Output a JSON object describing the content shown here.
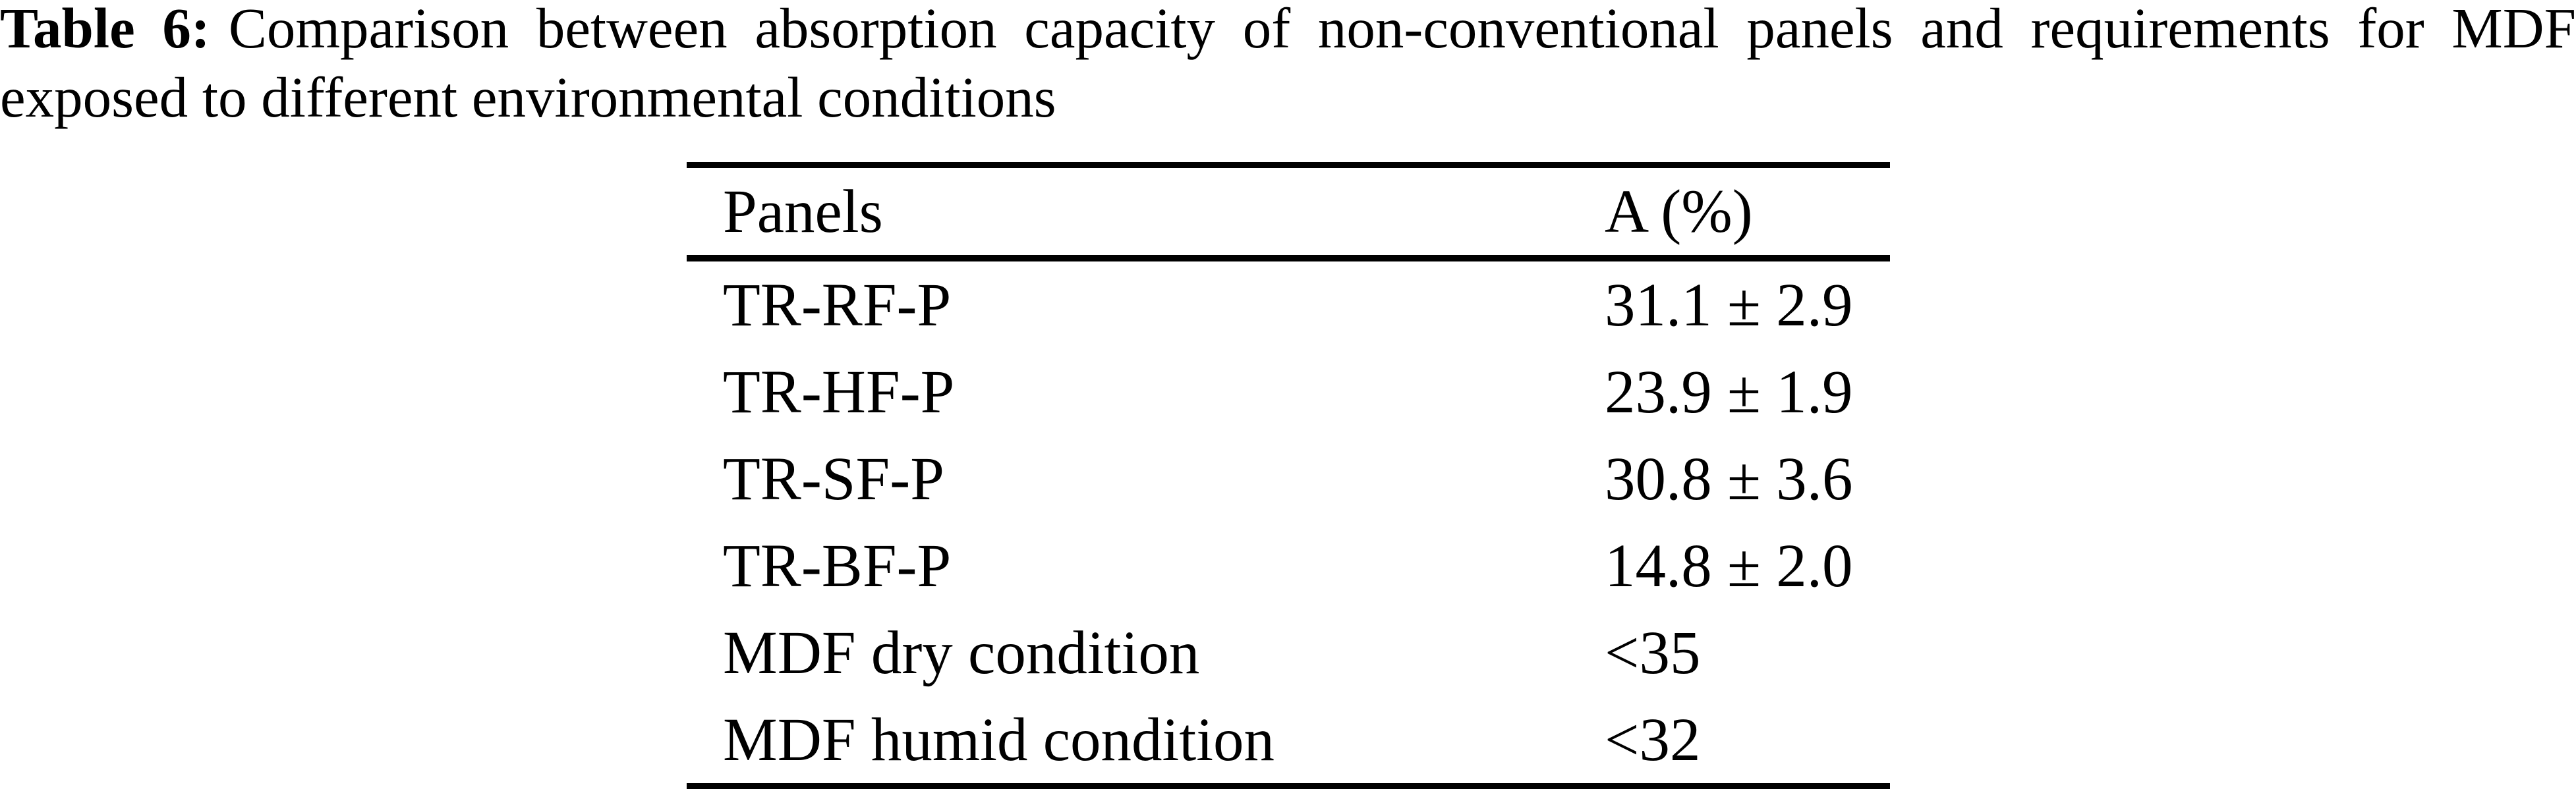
{
  "caption": {
    "label": "Table 6:",
    "line1_rest": "Comparison between absorption capacity of non-conventional panels and requirements for MDF",
    "line2": "exposed to different environmental conditions"
  },
  "table": {
    "headers": {
      "panel": "Panels",
      "value": "A (%)"
    },
    "rows": [
      {
        "panel": "TR-RF-P",
        "value": "31.1 ± 2.9"
      },
      {
        "panel": "TR-HF-P",
        "value": "23.9 ± 1.9"
      },
      {
        "panel": "TR-SF-P",
        "value": "30.8 ± 3.6"
      },
      {
        "panel": "TR-BF-P",
        "value": "14.8 ± 2.0"
      },
      {
        "panel": "MDF dry condition",
        "value": "<35"
      },
      {
        "panel": "MDF humid condition",
        "value": "<32"
      }
    ]
  },
  "chart_data": {
    "type": "table",
    "title": "Table 6: Comparison between absorption capacity of non-conventional panels and requirements for MDF exposed to different environmental conditions",
    "columns": [
      "Panels",
      "A (%)"
    ],
    "rows": [
      [
        "TR-RF-P",
        "31.1 ± 2.9"
      ],
      [
        "TR-HF-P",
        "23.9 ± 1.9"
      ],
      [
        "TR-SF-P",
        "30.8 ± 3.6"
      ],
      [
        "TR-BF-P",
        "14.8 ± 2.0"
      ],
      [
        "MDF dry condition",
        "<35"
      ],
      [
        "MDF humid condition",
        "<32"
      ]
    ]
  },
  "colors": {
    "text": "#000000",
    "background": "#ffffff"
  }
}
